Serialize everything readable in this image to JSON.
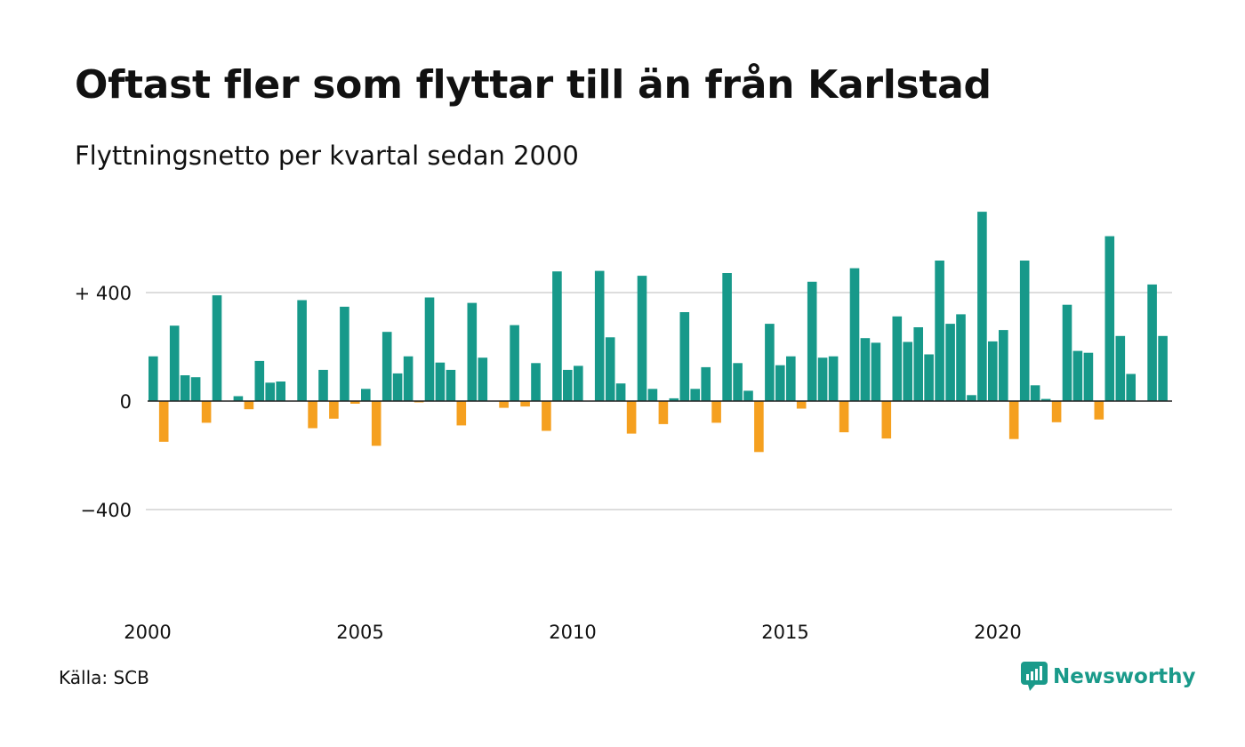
{
  "title": "Oftast fler som flyttar till än från Karlstad",
  "subtitle": "Flyttningsnetto per kvartal sedan 2000",
  "source": "Källa: SCB",
  "brand": "Newsworthy",
  "colors": {
    "positive": "#17998a",
    "negative": "#f5a01f",
    "grid": "#dddddd",
    "axis": "#222222",
    "brand": "#1a9a8a"
  },
  "chart_data": {
    "type": "bar",
    "ylim": [
      -650,
      710
    ],
    "y_ticks": [
      {
        "value": 400,
        "label": "+ 400"
      },
      {
        "value": 0,
        "label": "0"
      },
      {
        "value": -400,
        "label": "−400"
      }
    ],
    "x_labels": [
      {
        "year": 2000,
        "label": "2000"
      },
      {
        "year": 2005,
        "label": "2005"
      },
      {
        "year": 2010,
        "label": "2010"
      },
      {
        "year": 2015,
        "label": "2015"
      },
      {
        "year": 2020,
        "label": "2020"
      }
    ],
    "start_year": 2000,
    "grid": true,
    "values": [
      165,
      -150,
      278,
      95,
      88,
      -80,
      390,
      0,
      18,
      -30,
      148,
      68,
      72,
      0,
      372,
      -100,
      115,
      -65,
      348,
      -10,
      45,
      -165,
      255,
      102,
      165,
      -5,
      382,
      142,
      115,
      -90,
      362,
      160,
      0,
      -25,
      280,
      -20,
      140,
      -110,
      478,
      115,
      130,
      0,
      480,
      235,
      65,
      -120,
      462,
      45,
      -85,
      10,
      328,
      45,
      125,
      -80,
      472,
      140,
      38,
      -188,
      285,
      132,
      165,
      -28,
      440,
      160,
      165,
      -115,
      490,
      232,
      215,
      -138,
      312,
      218,
      272,
      172,
      518,
      285,
      320,
      22,
      698,
      220,
      262,
      -140,
      518,
      58,
      8,
      -78,
      355,
      185,
      178,
      -68,
      608,
      240,
      100,
      0,
      430,
      240
    ]
  }
}
